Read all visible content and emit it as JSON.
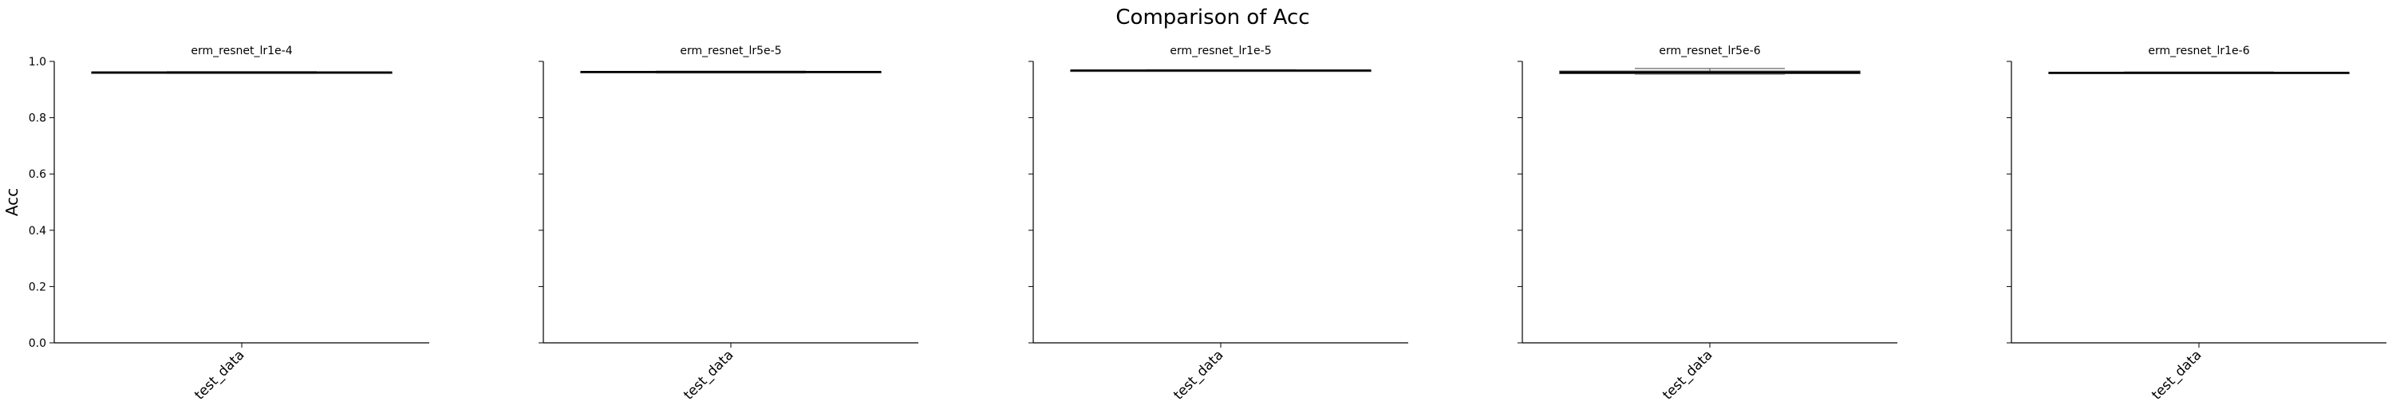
{
  "figure": {
    "title": "Comparison of Acc"
  },
  "chart_data": [
    {
      "type": "box",
      "title": "erm_resnet_lr1e-4",
      "xlabel": "",
      "ylabel": "Acc",
      "categories": [
        "test_data"
      ],
      "ylim": [
        0,
        1.0
      ],
      "yticks": [
        "0.0",
        "0.2",
        "0.4",
        "0.6",
        "0.8",
        "1.0"
      ],
      "box": {
        "whisker_low": 0.958,
        "q1": 0.959,
        "median": 0.961,
        "q3": 0.962,
        "whisker_high": 0.963
      },
      "show_yticklabels": true
    },
    {
      "type": "box",
      "title": "erm_resnet_lr5e-5",
      "xlabel": "",
      "ylabel": "",
      "categories": [
        "test_data"
      ],
      "ylim": [
        0,
        1.0
      ],
      "yticks": [
        "0.0",
        "0.2",
        "0.4",
        "0.6",
        "0.8",
        "1.0"
      ],
      "box": {
        "whisker_low": 0.959,
        "q1": 0.96,
        "median": 0.963,
        "q3": 0.964,
        "whisker_high": 0.965
      },
      "show_yticklabels": false
    },
    {
      "type": "box",
      "title": "erm_resnet_lr1e-5",
      "xlabel": "",
      "ylabel": "",
      "categories": [
        "test_data"
      ],
      "ylim": [
        0,
        1.0
      ],
      "yticks": [
        "0.0",
        "0.2",
        "0.4",
        "0.6",
        "0.8",
        "1.0"
      ],
      "box": {
        "whisker_low": 0.966,
        "q1": 0.967,
        "median": 0.968,
        "q3": 0.969,
        "whisker_high": 0.97
      },
      "show_yticklabels": false
    },
    {
      "type": "box",
      "title": "erm_resnet_lr5e-6",
      "xlabel": "",
      "ylabel": "",
      "categories": [
        "test_data"
      ],
      "ylim": [
        0,
        1.0
      ],
      "yticks": [
        "0.0",
        "0.2",
        "0.4",
        "0.6",
        "0.8",
        "1.0"
      ],
      "box": {
        "whisker_low": 0.955,
        "q1": 0.957,
        "median": 0.961,
        "q3": 0.965,
        "whisker_high": 0.975
      },
      "show_yticklabels": false
    },
    {
      "type": "box",
      "title": "erm_resnet_lr1e-6",
      "xlabel": "",
      "ylabel": "",
      "categories": [
        "test_data"
      ],
      "ylim": [
        0,
        1.0
      ],
      "yticks": [
        "0.0",
        "0.2",
        "0.4",
        "0.6",
        "0.8",
        "1.0"
      ],
      "box": {
        "whisker_low": 0.958,
        "q1": 0.959,
        "median": 0.96,
        "q3": 0.961,
        "whisker_high": 0.962
      },
      "show_yticklabels": false
    }
  ],
  "colors": {
    "axis": "#000000",
    "box_edge": "#3f3f3f",
    "whisker": "#7f7f7f",
    "median": "#000000"
  }
}
